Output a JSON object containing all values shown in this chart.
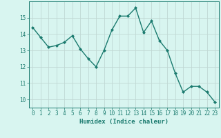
{
  "x": [
    0,
    1,
    2,
    3,
    4,
    5,
    6,
    7,
    8,
    9,
    10,
    11,
    12,
    13,
    14,
    15,
    16,
    17,
    18,
    19,
    20,
    21,
    22,
    23
  ],
  "y": [
    14.4,
    13.8,
    13.2,
    13.3,
    13.5,
    13.9,
    13.1,
    12.5,
    12.0,
    13.0,
    14.25,
    15.1,
    15.1,
    15.6,
    14.1,
    14.8,
    13.6,
    13.0,
    11.6,
    10.45,
    10.8,
    10.8,
    10.45,
    9.85
  ],
  "line_color": "#1a7a6e",
  "marker": "D",
  "marker_size": 2.0,
  "bg_color": "#d8f5f0",
  "grid_color": "#c0d8d4",
  "xlabel": "Humidex (Indice chaleur)",
  "xlim": [
    -0.5,
    23.5
  ],
  "ylim": [
    9.5,
    16.0
  ],
  "yticks": [
    10,
    11,
    12,
    13,
    14,
    15
  ],
  "xticks": [
    0,
    1,
    2,
    3,
    4,
    5,
    6,
    7,
    8,
    9,
    10,
    11,
    12,
    13,
    14,
    15,
    16,
    17,
    18,
    19,
    20,
    21,
    22,
    23
  ],
  "tick_color": "#1a7a6e",
  "xlabel_fontsize": 6.5,
  "tick_fontsize": 5.5,
  "line_width": 1.0
}
